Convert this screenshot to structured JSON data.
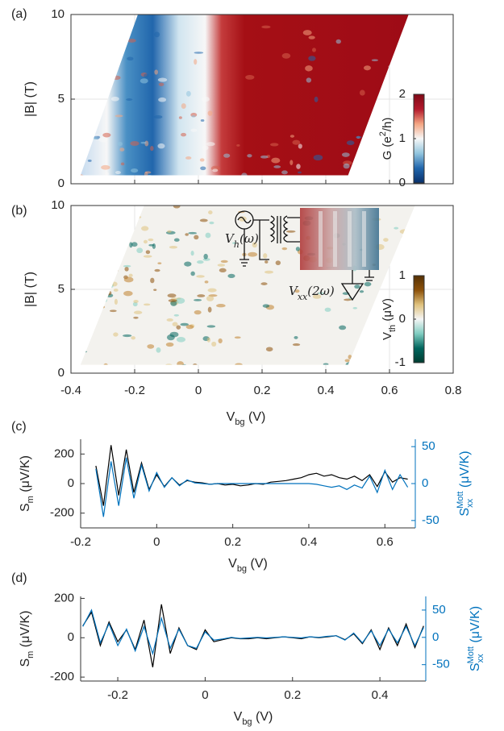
{
  "chart_data": [
    {
      "type": "heatmap",
      "label": "(a)",
      "ylabel": "|B| (T)",
      "xlim": [
        -0.4,
        0.8
      ],
      "xticks": [
        -0.4,
        -0.2,
        0,
        0.2,
        0.4,
        0.6,
        0.8
      ],
      "xtick_labels": false,
      "ylim": [
        0,
        10
      ],
      "yticks": [
        0,
        5,
        10
      ],
      "grid": true,
      "colorbar": {
        "colors": [
          "#08306b",
          "#2166ac",
          "#92c5de",
          "#f7f7f7",
          "#f4a582",
          "#b2182b",
          "#7f0a17"
        ],
        "lim": [
          0,
          2
        ],
        "ticks": [
          0,
          1,
          2
        ],
        "label": {
          "main": "G (e",
          "sup": "2",
          "end": "/h)"
        }
      }
    },
    {
      "type": "heatmap",
      "label": "(b)",
      "ylabel": "|B| (T)",
      "xlabel": {
        "main": "V",
        "sub": "bg",
        "end": " (V)"
      },
      "xlim": [
        -0.4,
        0.8
      ],
      "xticks": [
        -0.4,
        -0.2,
        0,
        0.2,
        0.4,
        0.6,
        0.8
      ],
      "xtick_labels": true,
      "ylim": [
        0,
        10
      ],
      "yticks": [
        0,
        5,
        10
      ],
      "grid": true,
      "colorbar": {
        "colors": [
          "#003c30",
          "#01665e",
          "#80cdc1",
          "#f5f5f5",
          "#dfc27d",
          "#8c510a",
          "#543005"
        ],
        "lim": [
          -1,
          1
        ],
        "ticks": [
          -1,
          0,
          1
        ],
        "label": {
          "main": "V",
          "sub": "th",
          "end": " (μV)"
        }
      },
      "inset": {
        "source": {
          "main": "V",
          "sub": "h",
          "end": "(ω)"
        },
        "probe": {
          "main": "V",
          "sub": "xx",
          "end": "(2ω)"
        }
      }
    },
    {
      "type": "line",
      "label": "(c)",
      "xlabel": {
        "main": "V",
        "sub": "bg",
        "end": " (V)"
      },
      "ylabel": {
        "main": "S",
        "sub": "m",
        "end": " (μV/K)"
      },
      "y2label": {
        "main": "S",
        "sub": "xx",
        "sup": "Mott",
        "end": " (μV/K)"
      },
      "xlim": [
        -0.2,
        0.68
      ],
      "xticks": [
        -0.2,
        0,
        0.2,
        0.4,
        0.6
      ],
      "ylim": [
        -300,
        300
      ],
      "yticks": [
        -200,
        0,
        200
      ],
      "y2lim": [
        -60,
        60
      ],
      "y2ticks": [
        -50,
        0,
        50
      ],
      "x": [
        -0.16,
        -0.14,
        -0.12,
        -0.1,
        -0.08,
        -0.06,
        -0.04,
        -0.02,
        0,
        0.02,
        0.04,
        0.06,
        0.08,
        0.1,
        0.12,
        0.14,
        0.16,
        0.18,
        0.2,
        0.22,
        0.24,
        0.26,
        0.28,
        0.3,
        0.32,
        0.34,
        0.36,
        0.38,
        0.4,
        0.42,
        0.44,
        0.46,
        0.48,
        0.5,
        0.52,
        0.54,
        0.56,
        0.58,
        0.6,
        0.62,
        0.64,
        0.66
      ],
      "series": [
        {
          "color": "#000000",
          "values": [
            120,
            -150,
            260,
            -80,
            230,
            -60,
            140,
            -40,
            60,
            -20,
            40,
            -10,
            20,
            10,
            5,
            -5,
            0,
            -10,
            -5,
            -15,
            -10,
            0,
            -5,
            10,
            15,
            20,
            30,
            40,
            60,
            70,
            50,
            60,
            40,
            30,
            50,
            20,
            60,
            -20,
            80,
            10,
            40,
            30
          ]
        },
        {
          "color": "#0072bd",
          "axis": "y2",
          "values": [
            20,
            -45,
            30,
            -30,
            35,
            -20,
            25,
            -10,
            15,
            -5,
            8,
            -3,
            5,
            1,
            0,
            -1,
            0,
            0,
            0,
            0,
            0,
            0,
            0,
            0,
            0,
            0,
            0,
            0,
            0,
            -1,
            -3,
            -5,
            -3,
            -8,
            -2,
            -6,
            10,
            -12,
            18,
            -8,
            12,
            -5
          ]
        }
      ]
    },
    {
      "type": "line",
      "label": "(d)",
      "xlabel": {
        "main": "V",
        "sub": "bg",
        "end": " (V)"
      },
      "ylabel": {
        "main": "S",
        "sub": "m",
        "end": " (μV/K)"
      },
      "y2label": {
        "main": "S",
        "sub": "xx",
        "sup": "Mott",
        "end": " (μV/K)"
      },
      "xlim": [
        -0.285,
        0.505
      ],
      "xticks": [
        -0.2,
        0,
        0.2,
        0.4
      ],
      "ylim": [
        -220,
        210
      ],
      "yticks": [
        -200,
        0,
        200
      ],
      "y2lim": [
        -80,
        75
      ],
      "y2ticks": [
        -50,
        0,
        50
      ],
      "x": [
        -0.28,
        -0.26,
        -0.24,
        -0.22,
        -0.2,
        -0.18,
        -0.16,
        -0.14,
        -0.12,
        -0.1,
        -0.08,
        -0.06,
        -0.04,
        -0.02,
        0,
        0.02,
        0.04,
        0.06,
        0.08,
        0.1,
        0.12,
        0.14,
        0.16,
        0.18,
        0.2,
        0.22,
        0.24,
        0.26,
        0.28,
        0.3,
        0.32,
        0.34,
        0.36,
        0.38,
        0.4,
        0.42,
        0.44,
        0.46,
        0.48,
        0.5
      ],
      "series": [
        {
          "color": "#000000",
          "values": [
            60,
            130,
            -40,
            80,
            -20,
            40,
            -60,
            90,
            -150,
            170,
            -80,
            50,
            -40,
            -60,
            40,
            -20,
            -10,
            0,
            -5,
            -5,
            0,
            -5,
            0,
            5,
            0,
            -5,
            5,
            0,
            5,
            10,
            -10,
            20,
            -30,
            40,
            -60,
            50,
            -40,
            70,
            -50,
            60
          ]
        },
        {
          "color": "#0072bd",
          "axis": "y2",
          "values": [
            20,
            50,
            -10,
            25,
            -15,
            15,
            -25,
            20,
            -30,
            35,
            -20,
            15,
            -15,
            -20,
            10,
            -5,
            -3,
            0,
            -2,
            -1,
            0,
            -1,
            0,
            1,
            0,
            -1,
            1,
            0,
            2,
            3,
            -5,
            8,
            -10,
            12,
            -15,
            15,
            -10,
            20,
            -15,
            18
          ]
        }
      ]
    }
  ]
}
